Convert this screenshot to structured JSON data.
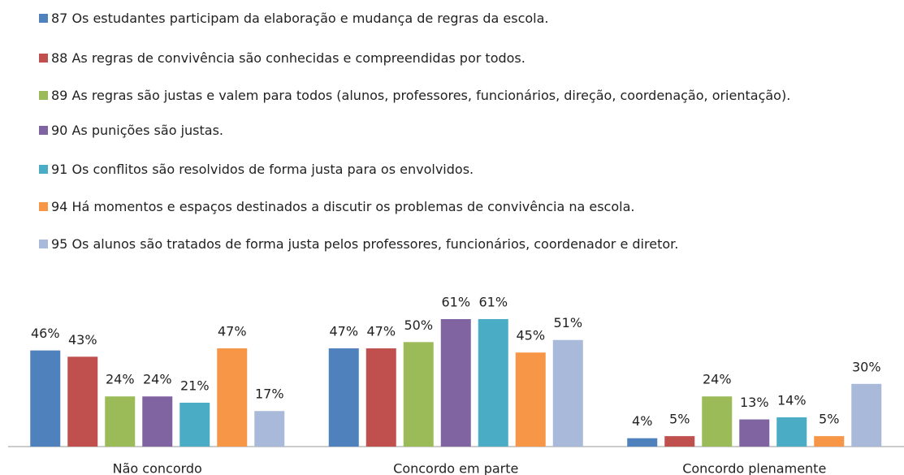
{
  "chart_data": {
    "type": "bar",
    "categories": [
      "Não concordo",
      "Concordo em parte",
      "Concordo plenamente"
    ],
    "series": [
      {
        "name": "87 Os estudantes participam da elaboração e mudança de regras da escola.",
        "color": "#4f81bd",
        "values": [
          46,
          47,
          4
        ],
        "value_labels": [
          "46%",
          "47%",
          "4%"
        ]
      },
      {
        "name": "88 As regras de convivência são conhecidas e compreendidas por todos.",
        "color": "#c0504d",
        "values": [
          43,
          47,
          5
        ],
        "value_labels": [
          "43%",
          "47%",
          "5%"
        ]
      },
      {
        "name": "89 As regras são justas e valem para todos (alunos, professores, funcionários, direção, coordenação, orientação).",
        "color": "#9bbb59",
        "values": [
          24,
          50,
          24
        ],
        "value_labels": [
          "24%",
          "50%",
          "24%"
        ]
      },
      {
        "name": "90 As punições são justas.",
        "color": "#8064a2",
        "values": [
          24,
          61,
          13
        ],
        "value_labels": [
          "24%",
          "61%",
          "13%"
        ]
      },
      {
        "name": "91 Os conflitos são resolvidos de forma justa para os envolvidos.",
        "color": "#4bacc6",
        "values": [
          21,
          61,
          14
        ],
        "value_labels": [
          "21%",
          "61%",
          "14%"
        ]
      },
      {
        "name": "94 Há momentos e espaços destinados a discutir os problemas de convivência na escola.",
        "color": "#f79646",
        "values": [
          47,
          45,
          5
        ],
        "value_labels": [
          "47%",
          "45%",
          "5%"
        ]
      },
      {
        "name": "95 Os alunos são tratados de forma justa pelos professores, funcionários, coordenador e diretor.",
        "color": "#a9b9d9",
        "values": [
          17,
          51,
          30
        ],
        "value_labels": [
          "17%",
          "51%",
          "30%"
        ]
      }
    ]
  }
}
